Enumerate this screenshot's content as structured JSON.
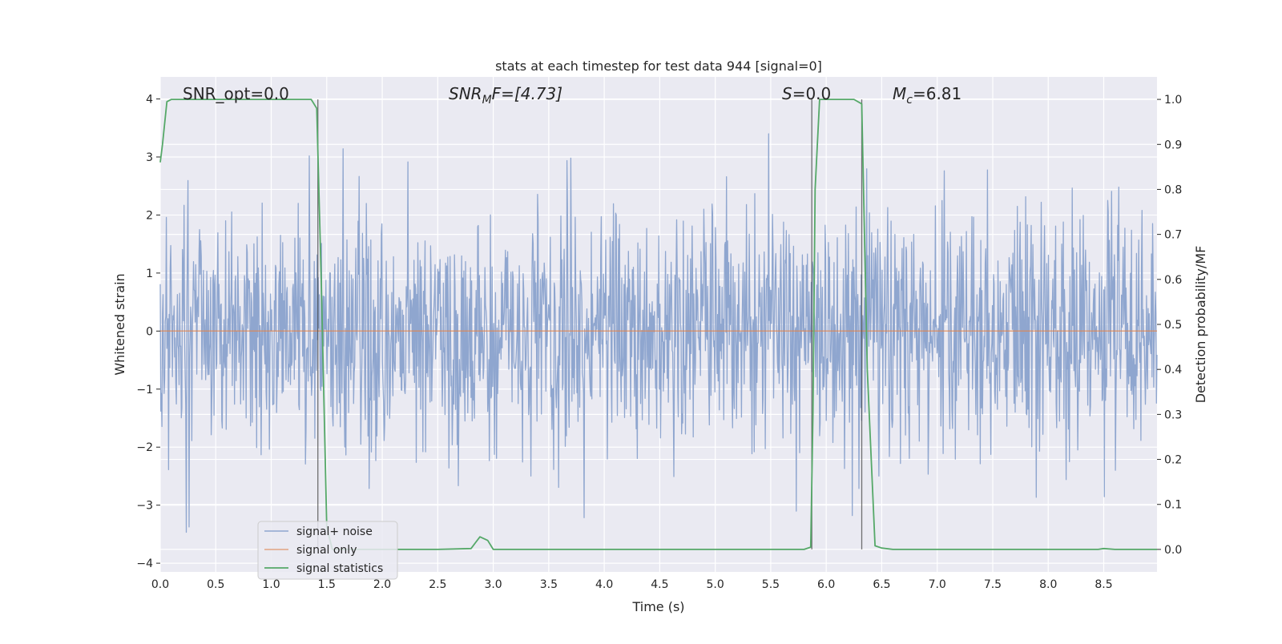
{
  "chart_data": {
    "type": "line",
    "title": "stats at each timestep for test data 944 [signal=0]",
    "xlabel": "Time (s)",
    "ylabel": "Whitened strain",
    "ylabel_right": "Detection probability/MF",
    "xlim": [
      0.0,
      8.98
    ],
    "ylim": [
      -4.15,
      4.38
    ],
    "ylim_right": [
      -0.05,
      1.05
    ],
    "x_ticks": [
      "0.0",
      "0.5",
      "1.0",
      "1.5",
      "2.0",
      "2.5",
      "3.0",
      "3.5",
      "4.0",
      "4.5",
      "5.0",
      "5.5",
      "6.0",
      "6.5",
      "7.0",
      "7.5",
      "8.0",
      "8.5"
    ],
    "y_ticks": [
      "4",
      "3",
      "2",
      "1",
      "0",
      "−1",
      "−2",
      "−3",
      "−4"
    ],
    "y_ticks_right": [
      "1.0",
      "0.9",
      "0.8",
      "0.7",
      "0.6",
      "0.5",
      "0.4",
      "0.3",
      "0.2",
      "0.1",
      "0.0"
    ],
    "grid": true,
    "legend_position": "lower-left",
    "annotations": {
      "snr_opt": "SNR_opt=0.0",
      "snr_mf_main": "SNR",
      "snr_mf_sub": "M",
      "snr_mf_rest": "F=[4.73]",
      "s_main": "S",
      "s_rest": "=0.0",
      "mc_main": "M",
      "mc_sub": "c",
      "mc_rest": "=6.81"
    },
    "series": [
      {
        "name": "signal+ noise",
        "color": "#8fa6cf",
        "note": "whitened noisy strain, roughly in [-3.5, 3.4]"
      },
      {
        "name": "signal only",
        "color": "#dd8452",
        "x": [
          0.0,
          8.98
        ],
        "y": [
          0.0,
          0.0
        ]
      },
      {
        "name": "signal statistics",
        "color": "#55a868",
        "x": [
          0.0,
          0.02,
          0.06,
          0.1,
          0.5,
          1.0,
          1.36,
          1.41,
          1.45,
          1.5,
          1.55,
          1.6,
          1.7,
          2.0,
          2.5,
          2.8,
          2.84,
          2.88,
          2.95,
          3.0,
          3.5,
          4.0,
          5.0,
          5.8,
          5.86,
          5.88,
          5.9,
          5.94,
          6.0,
          6.1,
          6.25,
          6.32,
          6.37,
          6.44,
          6.5,
          6.6,
          7.0,
          8.0,
          8.45,
          8.5,
          8.6,
          8.98
        ],
        "y": [
          0.86,
          0.9,
          0.995,
          1.0,
          1.0,
          1.0,
          1.0,
          0.98,
          0.6,
          0.05,
          0.0,
          0.0,
          0.0,
          0.0,
          0.0,
          0.002,
          0.015,
          0.028,
          0.02,
          0.0,
          0.0,
          0.0,
          0.0,
          0.0,
          0.005,
          0.3,
          0.8,
          1.0,
          1.0,
          1.0,
          1.0,
          0.99,
          0.4,
          0.008,
          0.003,
          0.0,
          0.0,
          0.0,
          0.0,
          0.002,
          0.0,
          0.0
        ]
      }
    ],
    "vertical_lines": [
      1.42,
      5.87,
      6.32
    ]
  }
}
